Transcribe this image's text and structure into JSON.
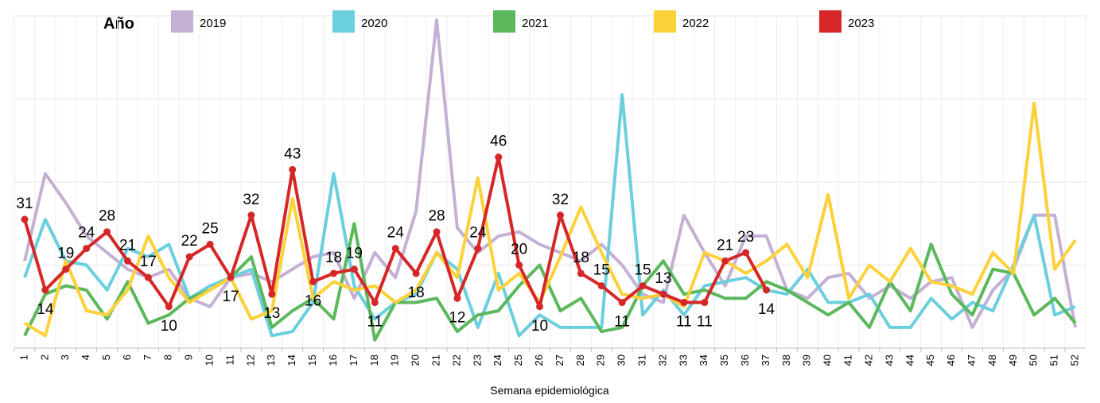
{
  "chart_data": {
    "type": "line",
    "legend_title": "Año",
    "x_label": "Semana epidemiológica",
    "categories": [
      "1",
      "2",
      "3",
      "4",
      "5",
      "6",
      "7",
      "8",
      "9",
      "10",
      "11",
      "12",
      "13",
      "14",
      "15",
      "16",
      "17",
      "18",
      "19",
      "20",
      "21",
      "22",
      "23",
      "24",
      "25",
      "26",
      "27",
      "28",
      "29",
      "30",
      "31",
      "32",
      "33",
      "34",
      "35",
      "36",
      "37",
      "38",
      "39",
      "40",
      "41",
      "42",
      "43",
      "44",
      "45",
      "46",
      "47",
      "48",
      "49",
      "50",
      "51",
      "52"
    ],
    "ylim": [
      0,
      80
    ],
    "yticks": [
      0,
      20,
      40,
      60,
      80
    ],
    "grid": true,
    "legend_position": "top",
    "series": [
      {
        "name": "2019",
        "color": "#c5b0d5",
        "values": [
          21,
          42,
          35,
          27,
          23,
          19,
          17,
          19,
          12,
          10,
          17,
          18,
          16,
          19,
          22,
          23,
          12,
          23,
          17,
          33,
          79,
          29,
          23,
          27,
          28,
          25,
          23,
          21,
          25,
          20,
          13,
          11,
          32,
          23,
          15,
          27,
          27,
          14,
          12,
          17,
          18,
          12,
          15,
          12,
          16,
          17,
          5,
          14,
          19,
          32,
          32,
          5
        ]
      },
      {
        "name": "2020",
        "color": "#6ccfde",
        "values": [
          17,
          31,
          21,
          20,
          14,
          24,
          22,
          25,
          12,
          15,
          17,
          19,
          3,
          4,
          11,
          42,
          15,
          7,
          11,
          13,
          23,
          19,
          5,
          18,
          3,
          8,
          5,
          5,
          5,
          61,
          8,
          14,
          8,
          15,
          16,
          17,
          14,
          13,
          19,
          11,
          11,
          13,
          5,
          5,
          12,
          7,
          11,
          9,
          20,
          32,
          8,
          10
        ]
      },
      {
        "name": "2021",
        "color": "#5cb85c",
        "values": [
          3,
          13,
          15,
          14,
          7,
          16,
          6,
          8,
          12,
          14,
          17,
          22,
          5,
          9,
          12,
          7,
          30,
          2,
          11,
          11,
          12,
          4,
          8,
          9,
          15,
          20,
          9,
          12,
          4,
          5,
          15,
          21,
          13,
          14,
          12,
          12,
          16,
          14,
          11,
          8,
          11,
          5,
          16,
          9,
          25,
          13,
          8,
          19,
          18,
          8,
          12,
          6
        ]
      },
      {
        "name": "2022",
        "color": "#fdd13a",
        "values": [
          6,
          3,
          21,
          9,
          8,
          14,
          27,
          17,
          11,
          14,
          17,
          7,
          9,
          36,
          12,
          16,
          14,
          15,
          11,
          14,
          23,
          17,
          41,
          14,
          18,
          11,
          22,
          34,
          23,
          13,
          12,
          13,
          10,
          23,
          21,
          18,
          21,
          25,
          17,
          37,
          12,
          20,
          16,
          24,
          16,
          15,
          13,
          23,
          18,
          59,
          19,
          26
        ]
      },
      {
        "name": "2023",
        "color": "#d62728",
        "markers": true,
        "data_labels": true,
        "values": [
          31,
          14,
          19,
          24,
          28,
          21,
          17,
          10,
          22,
          25,
          17,
          32,
          13,
          43,
          16,
          18,
          19,
          11,
          24,
          18,
          28,
          12,
          24,
          46,
          20,
          10,
          32,
          18,
          15,
          11,
          15,
          13,
          11,
          11,
          21,
          23,
          14,
          null,
          null,
          null,
          null,
          null,
          null,
          null,
          null,
          null,
          null,
          null,
          null,
          null,
          null,
          null
        ]
      }
    ]
  }
}
